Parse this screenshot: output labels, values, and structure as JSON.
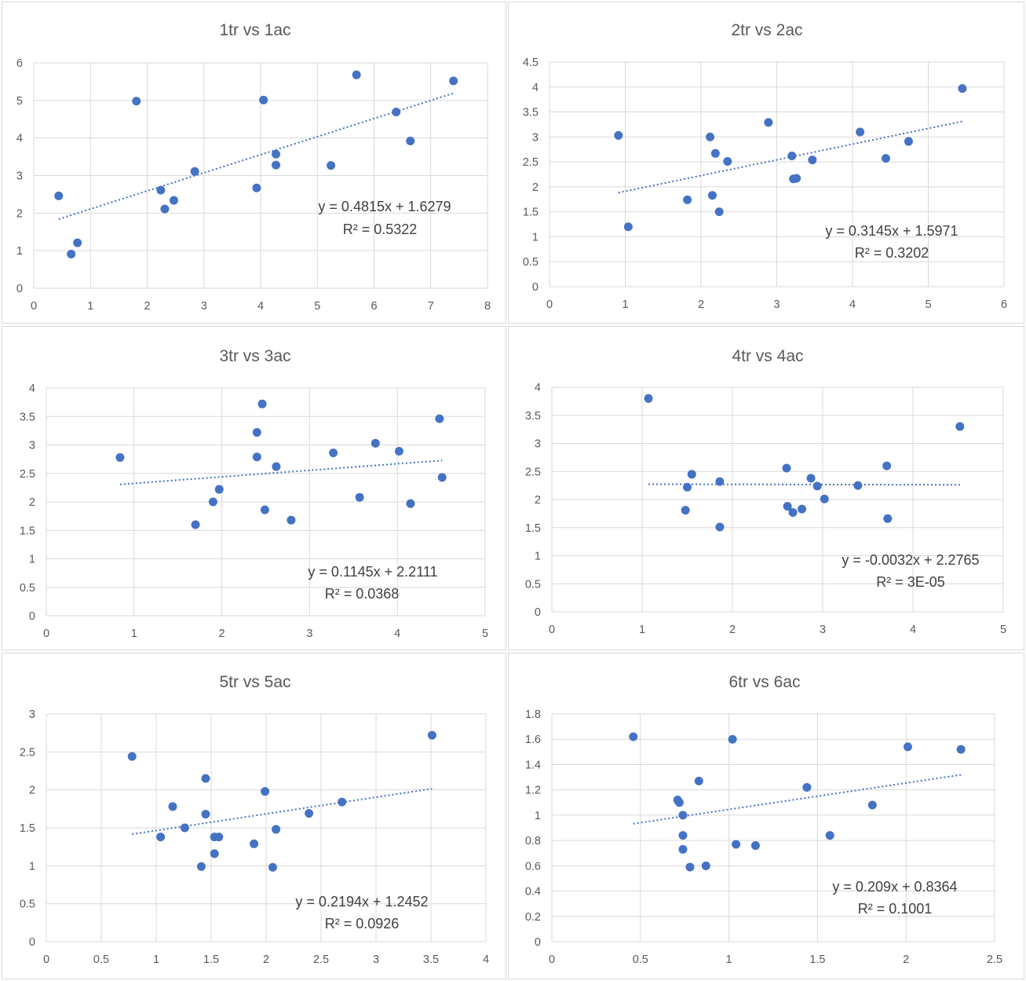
{
  "colors": {
    "marker": "#4472c4",
    "gridline": "#d9d9d9",
    "text": "#595959"
  },
  "chart_data": [
    {
      "type": "scatter",
      "title": "1tr vs 1ac",
      "xlim": [
        0,
        8
      ],
      "ylim": [
        0,
        6
      ],
      "xticks": [
        0,
        1,
        2,
        3,
        4,
        5,
        6,
        7,
        8
      ],
      "yticks": [
        0,
        1,
        2,
        3,
        4,
        5,
        6
      ],
      "xticklabels": [
        "0",
        "1",
        "2",
        "3",
        "4",
        "5",
        "6",
        "7",
        "8"
      ],
      "yticklabels": [
        "0",
        "1",
        "2",
        "3",
        "4",
        "5",
        "6"
      ],
      "grid": true,
      "points": [
        [
          0.44,
          2.46
        ],
        [
          0.66,
          0.91
        ],
        [
          0.77,
          1.21
        ],
        [
          1.81,
          4.98
        ],
        [
          2.24,
          2.61
        ],
        [
          2.31,
          2.11
        ],
        [
          2.47,
          2.34
        ],
        [
          2.84,
          3.11
        ],
        [
          3.93,
          2.67
        ],
        [
          4.05,
          5.01
        ],
        [
          4.27,
          3.57
        ],
        [
          4.27,
          3.28
        ],
        [
          5.24,
          3.27
        ],
        [
          5.69,
          5.68
        ],
        [
          6.39,
          4.69
        ],
        [
          6.64,
          3.92
        ],
        [
          7.4,
          5.52
        ]
      ],
      "trendline": {
        "slope": 0.4815,
        "intercept": 1.6279,
        "x_range": [
          0.44,
          7.4
        ]
      },
      "equation": "y = 0.4815x + 1.6279",
      "r2": "R² = 0.5322"
    },
    {
      "type": "scatter",
      "title": "2tr vs 2ac",
      "xlim": [
        0,
        6
      ],
      "ylim": [
        0,
        4.5
      ],
      "xticks": [
        0,
        1,
        2,
        3,
        4,
        5,
        6
      ],
      "yticks": [
        0,
        0.5,
        1,
        1.5,
        2,
        2.5,
        3,
        3.5,
        4,
        4.5
      ],
      "xticklabels": [
        "0",
        "1",
        "2",
        "3",
        "4",
        "5",
        "6"
      ],
      "yticklabels": [
        "0",
        "0.5",
        "1",
        "1.5",
        "2",
        "2.5",
        "3",
        "3.5",
        "4",
        "4.5"
      ],
      "grid": true,
      "points": [
        [
          0.91,
          3.03
        ],
        [
          1.04,
          1.2
        ],
        [
          1.82,
          1.74
        ],
        [
          2.12,
          3.0
        ],
        [
          2.15,
          1.83
        ],
        [
          2.19,
          2.67
        ],
        [
          2.24,
          1.5
        ],
        [
          2.35,
          2.51
        ],
        [
          2.89,
          3.29
        ],
        [
          3.2,
          2.62
        ],
        [
          3.22,
          2.16
        ],
        [
          3.26,
          2.17
        ],
        [
          3.47,
          2.54
        ],
        [
          4.1,
          3.1
        ],
        [
          4.44,
          2.57
        ],
        [
          4.74,
          2.91
        ],
        [
          5.45,
          3.97
        ]
      ],
      "trendline": {
        "slope": 0.3145,
        "intercept": 1.5971,
        "x_range": [
          0.91,
          5.45
        ]
      },
      "equation": "y = 0.3145x + 1.5971",
      "r2": "R² = 0.3202"
    },
    {
      "type": "scatter",
      "title": "3tr vs 3ac",
      "xlim": [
        0,
        5
      ],
      "ylim": [
        0,
        4
      ],
      "xticks": [
        0,
        1,
        2,
        3,
        4,
        5
      ],
      "yticks": [
        0,
        0.5,
        1,
        1.5,
        2,
        2.5,
        3,
        3.5,
        4
      ],
      "xticklabels": [
        "0",
        "1",
        "2",
        "3",
        "4",
        "5"
      ],
      "yticklabels": [
        "0",
        "0.5",
        "1",
        "1.5",
        "2",
        "2.5",
        "3",
        "3.5",
        "4"
      ],
      "grid": true,
      "points": [
        [
          0.84,
          2.78
        ],
        [
          1.7,
          1.6
        ],
        [
          1.9,
          2.0
        ],
        [
          1.97,
          2.22
        ],
        [
          2.4,
          3.22
        ],
        [
          2.4,
          2.79
        ],
        [
          2.46,
          3.72
        ],
        [
          2.49,
          1.86
        ],
        [
          2.62,
          2.62
        ],
        [
          2.79,
          1.68
        ],
        [
          3.27,
          2.86
        ],
        [
          3.57,
          2.08
        ],
        [
          3.75,
          3.03
        ],
        [
          4.02,
          2.89
        ],
        [
          4.15,
          1.97
        ],
        [
          4.48,
          3.46
        ],
        [
          4.51,
          2.43
        ]
      ],
      "trendline": {
        "slope": 0.1145,
        "intercept": 2.2111,
        "x_range": [
          0.84,
          4.51
        ]
      },
      "equation": "y = 0.1145x + 2.2111",
      "r2": "R² = 0.0368"
    },
    {
      "type": "scatter",
      "title": "4tr vs 4ac",
      "xlim": [
        0,
        5
      ],
      "ylim": [
        0,
        4
      ],
      "xticks": [
        0,
        1,
        2,
        3,
        4,
        5
      ],
      "yticks": [
        0,
        0.5,
        1,
        1.5,
        2,
        2.5,
        3,
        3.5,
        4
      ],
      "xticklabels": [
        "0",
        "1",
        "2",
        "3",
        "4",
        "5"
      ],
      "yticklabels": [
        "0",
        "0.5",
        "1",
        "1.5",
        "2",
        "2.5",
        "3",
        "3.5",
        "4"
      ],
      "grid": true,
      "points": [
        [
          1.07,
          3.8
        ],
        [
          1.48,
          1.81
        ],
        [
          1.5,
          2.22
        ],
        [
          1.55,
          2.45
        ],
        [
          1.86,
          2.32
        ],
        [
          1.86,
          1.51
        ],
        [
          2.6,
          2.56
        ],
        [
          2.61,
          1.88
        ],
        [
          2.67,
          1.77
        ],
        [
          2.77,
          1.83
        ],
        [
          2.87,
          2.38
        ],
        [
          2.94,
          2.24
        ],
        [
          3.02,
          2.01
        ],
        [
          3.39,
          2.25
        ],
        [
          3.71,
          2.6
        ],
        [
          3.72,
          1.66
        ],
        [
          4.52,
          3.3
        ]
      ],
      "trendline": {
        "slope": -0.0032,
        "intercept": 2.2765,
        "x_range": [
          1.07,
          4.52
        ]
      },
      "equation": "y = -0.0032x + 2.2765",
      "r2": "R² = 3E-05"
    },
    {
      "type": "scatter",
      "title": "5tr vs 5ac",
      "xlim": [
        0,
        4
      ],
      "ylim": [
        0,
        3
      ],
      "xticks": [
        0,
        0.5,
        1,
        1.5,
        2,
        2.5,
        3,
        3.5,
        4
      ],
      "yticks": [
        0,
        0.5,
        1,
        1.5,
        2,
        2.5,
        3
      ],
      "xticklabels": [
        "0",
        "0.5",
        "1",
        "1.5",
        "2",
        "2.5",
        "3",
        "3.5",
        "4"
      ],
      "yticklabels": [
        "0",
        "0.5",
        "1",
        "1.5",
        "2",
        "2.5",
        "3"
      ],
      "grid": true,
      "points": [
        [
          0.78,
          2.44
        ],
        [
          1.04,
          1.38
        ],
        [
          1.15,
          1.78
        ],
        [
          1.26,
          1.5
        ],
        [
          1.41,
          0.99
        ],
        [
          1.45,
          2.15
        ],
        [
          1.45,
          1.68
        ],
        [
          1.53,
          1.16
        ],
        [
          1.53,
          1.38
        ],
        [
          1.57,
          1.38
        ],
        [
          1.89,
          1.29
        ],
        [
          1.99,
          1.98
        ],
        [
          2.06,
          0.98
        ],
        [
          2.09,
          1.48
        ],
        [
          2.39,
          1.69
        ],
        [
          2.69,
          1.84
        ],
        [
          3.51,
          2.72
        ]
      ],
      "trendline": {
        "slope": 0.2194,
        "intercept": 1.2452,
        "x_range": [
          0.78,
          3.51
        ]
      },
      "equation": "y = 0.2194x + 1.2452",
      "r2": "R² = 0.0926"
    },
    {
      "type": "scatter",
      "title": "6tr vs 6ac",
      "xlim": [
        0,
        2.5
      ],
      "ylim": [
        0,
        1.8
      ],
      "xticks": [
        0,
        0.5,
        1,
        1.5,
        2,
        2.5
      ],
      "yticks": [
        0,
        0.2,
        0.4,
        0.6,
        0.8,
        1,
        1.2,
        1.4,
        1.6,
        1.8
      ],
      "xticklabels": [
        "0",
        "0.5",
        "1",
        "1.5",
        "2",
        "2.5"
      ],
      "yticklabels": [
        "0",
        "0.2",
        "0.4",
        "0.6",
        "0.8",
        "1",
        "1.2",
        "1.4",
        "1.6",
        "1.8"
      ],
      "grid": true,
      "points": [
        [
          0.46,
          1.62
        ],
        [
          0.71,
          1.12
        ],
        [
          0.72,
          1.1
        ],
        [
          0.74,
          1.0
        ],
        [
          0.74,
          0.84
        ],
        [
          0.74,
          0.73
        ],
        [
          0.78,
          0.59
        ],
        [
          0.83,
          1.27
        ],
        [
          0.87,
          0.6
        ],
        [
          1.02,
          1.6
        ],
        [
          1.04,
          0.77
        ],
        [
          1.15,
          0.76
        ],
        [
          1.44,
          1.22
        ],
        [
          1.57,
          0.84
        ],
        [
          1.81,
          1.08
        ],
        [
          2.01,
          1.54
        ],
        [
          2.31,
          1.52
        ]
      ],
      "trendline": {
        "slope": 0.209,
        "intercept": 0.8364,
        "x_range": [
          0.46,
          2.31
        ]
      },
      "equation": "y = 0.209x + 0.8364",
      "r2": "R² = 0.1001"
    }
  ]
}
